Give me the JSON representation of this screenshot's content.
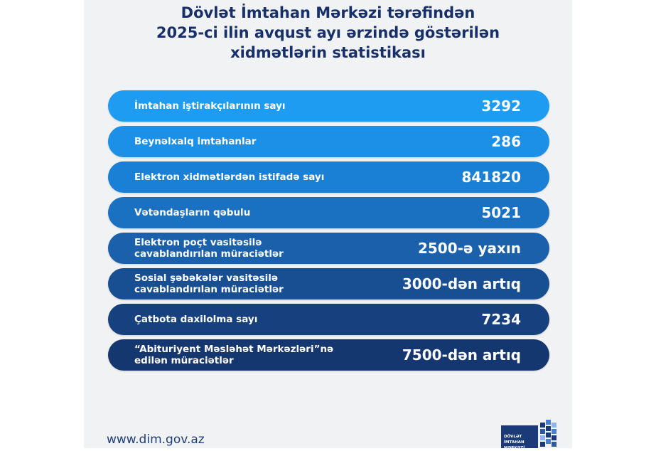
{
  "header": {
    "title_lines": [
      "Dövlət İmtahan Mərkəzi tərəfindən",
      "2025-ci ilin avqust ayı ərzində göstərilən",
      "xidmətlərin statistikası"
    ]
  },
  "rows": [
    {
      "label": [
        "İmtahan iştirakçılarının sayı"
      ],
      "value": "3292"
    },
    {
      "label": [
        "Beynəlxalq imtahanlar"
      ],
      "value": "286"
    },
    {
      "label": [
        "Elektron xidmətlərdən istifadə sayı"
      ],
      "value": "841820"
    },
    {
      "label": [
        "Vətəndaşların qəbulu"
      ],
      "value": "5021"
    },
    {
      "label": [
        "Elektron poçt vasitəsilə",
        "cavablandırılan müraciətlər"
      ],
      "value": "2500-ə yaxın"
    },
    {
      "label": [
        "Sosial şəbəkələr vasitəsilə",
        "cavablandırılan müraciətlər"
      ],
      "value": "3000-dən artıq"
    },
    {
      "label": [
        "Çatbota daxilolma sayı"
      ],
      "value": "7234"
    },
    {
      "label": [
        "“Abituriyent Məsləhət Mərkəzləri”nə",
        "edilən müraciətlər"
      ],
      "value": "7500-dən artıq"
    }
  ],
  "footer": {
    "url": "www.dim.gov.az",
    "logo_lines": [
      "DÖVLƏT",
      "İMTAHAN",
      "MƏRKƏZİ"
    ]
  }
}
